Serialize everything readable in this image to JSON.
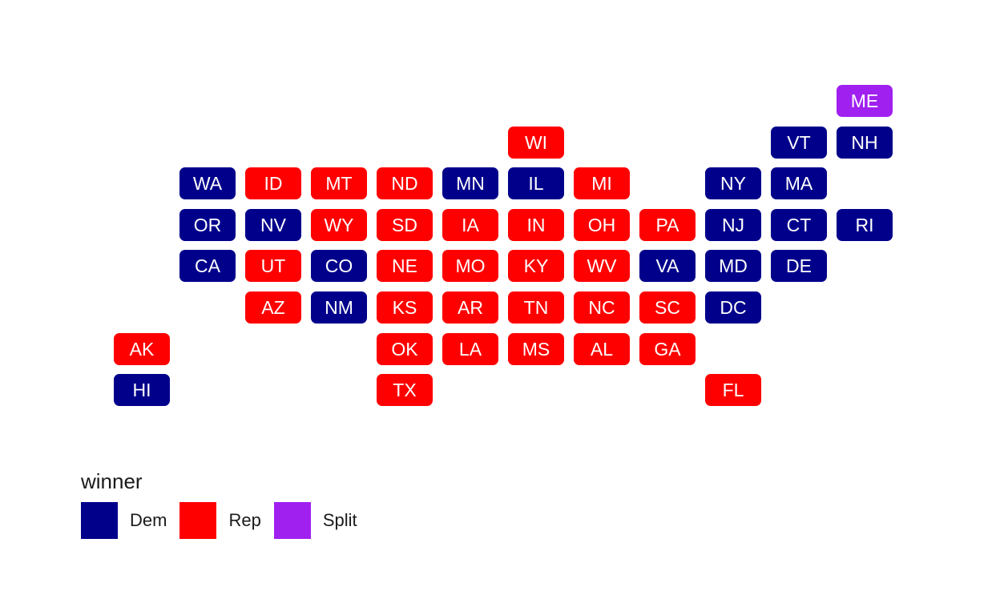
{
  "legend": {
    "title": "winner",
    "items": [
      {
        "label": "Dem",
        "key": "Dem"
      },
      {
        "label": "Rep",
        "key": "Rep"
      },
      {
        "label": "Split",
        "key": "Split"
      }
    ]
  },
  "colors": {
    "Dem": "#00008b",
    "Rep": "#ff0000",
    "Split": "#a020f0",
    "text": "#ffffff"
  },
  "states": [
    {
      "abbr": "ME",
      "col": 11,
      "row": 0,
      "winner": "Split"
    },
    {
      "abbr": "WI",
      "col": 6,
      "row": 1,
      "winner": "Rep"
    },
    {
      "abbr": "VT",
      "col": 10,
      "row": 1,
      "winner": "Dem"
    },
    {
      "abbr": "NH",
      "col": 11,
      "row": 1,
      "winner": "Dem"
    },
    {
      "abbr": "WA",
      "col": 1,
      "row": 2,
      "winner": "Dem"
    },
    {
      "abbr": "ID",
      "col": 2,
      "row": 2,
      "winner": "Rep"
    },
    {
      "abbr": "MT",
      "col": 3,
      "row": 2,
      "winner": "Rep"
    },
    {
      "abbr": "ND",
      "col": 4,
      "row": 2,
      "winner": "Rep"
    },
    {
      "abbr": "MN",
      "col": 5,
      "row": 2,
      "winner": "Dem"
    },
    {
      "abbr": "IL",
      "col": 6,
      "row": 2,
      "winner": "Dem"
    },
    {
      "abbr": "MI",
      "col": 7,
      "row": 2,
      "winner": "Rep"
    },
    {
      "abbr": "NY",
      "col": 9,
      "row": 2,
      "winner": "Dem"
    },
    {
      "abbr": "MA",
      "col": 10,
      "row": 2,
      "winner": "Dem"
    },
    {
      "abbr": "OR",
      "col": 1,
      "row": 3,
      "winner": "Dem"
    },
    {
      "abbr": "NV",
      "col": 2,
      "row": 3,
      "winner": "Dem"
    },
    {
      "abbr": "WY",
      "col": 3,
      "row": 3,
      "winner": "Rep"
    },
    {
      "abbr": "SD",
      "col": 4,
      "row": 3,
      "winner": "Rep"
    },
    {
      "abbr": "IA",
      "col": 5,
      "row": 3,
      "winner": "Rep"
    },
    {
      "abbr": "IN",
      "col": 6,
      "row": 3,
      "winner": "Rep"
    },
    {
      "abbr": "OH",
      "col": 7,
      "row": 3,
      "winner": "Rep"
    },
    {
      "abbr": "PA",
      "col": 8,
      "row": 3,
      "winner": "Rep"
    },
    {
      "abbr": "NJ",
      "col": 9,
      "row": 3,
      "winner": "Dem"
    },
    {
      "abbr": "CT",
      "col": 10,
      "row": 3,
      "winner": "Dem"
    },
    {
      "abbr": "RI",
      "col": 11,
      "row": 3,
      "winner": "Dem"
    },
    {
      "abbr": "CA",
      "col": 1,
      "row": 4,
      "winner": "Dem"
    },
    {
      "abbr": "UT",
      "col": 2,
      "row": 4,
      "winner": "Rep"
    },
    {
      "abbr": "CO",
      "col": 3,
      "row": 4,
      "winner": "Dem"
    },
    {
      "abbr": "NE",
      "col": 4,
      "row": 4,
      "winner": "Rep"
    },
    {
      "abbr": "MO",
      "col": 5,
      "row": 4,
      "winner": "Rep"
    },
    {
      "abbr": "KY",
      "col": 6,
      "row": 4,
      "winner": "Rep"
    },
    {
      "abbr": "WV",
      "col": 7,
      "row": 4,
      "winner": "Rep"
    },
    {
      "abbr": "VA",
      "col": 8,
      "row": 4,
      "winner": "Dem"
    },
    {
      "abbr": "MD",
      "col": 9,
      "row": 4,
      "winner": "Dem"
    },
    {
      "abbr": "DE",
      "col": 10,
      "row": 4,
      "winner": "Dem"
    },
    {
      "abbr": "AZ",
      "col": 2,
      "row": 5,
      "winner": "Rep"
    },
    {
      "abbr": "NM",
      "col": 3,
      "row": 5,
      "winner": "Dem"
    },
    {
      "abbr": "KS",
      "col": 4,
      "row": 5,
      "winner": "Rep"
    },
    {
      "abbr": "AR",
      "col": 5,
      "row": 5,
      "winner": "Rep"
    },
    {
      "abbr": "TN",
      "col": 6,
      "row": 5,
      "winner": "Rep"
    },
    {
      "abbr": "NC",
      "col": 7,
      "row": 5,
      "winner": "Rep"
    },
    {
      "abbr": "SC",
      "col": 8,
      "row": 5,
      "winner": "Rep"
    },
    {
      "abbr": "DC",
      "col": 9,
      "row": 5,
      "winner": "Dem"
    },
    {
      "abbr": "AK",
      "col": 0,
      "row": 6,
      "winner": "Rep"
    },
    {
      "abbr": "OK",
      "col": 4,
      "row": 6,
      "winner": "Rep"
    },
    {
      "abbr": "LA",
      "col": 5,
      "row": 6,
      "winner": "Rep"
    },
    {
      "abbr": "MS",
      "col": 6,
      "row": 6,
      "winner": "Rep"
    },
    {
      "abbr": "AL",
      "col": 7,
      "row": 6,
      "winner": "Rep"
    },
    {
      "abbr": "GA",
      "col": 8,
      "row": 6,
      "winner": "Rep"
    },
    {
      "abbr": "HI",
      "col": 0,
      "row": 7,
      "winner": "Dem"
    },
    {
      "abbr": "TX",
      "col": 4,
      "row": 7,
      "winner": "Rep"
    },
    {
      "abbr": "FL",
      "col": 9,
      "row": 7,
      "winner": "Rep"
    }
  ]
}
